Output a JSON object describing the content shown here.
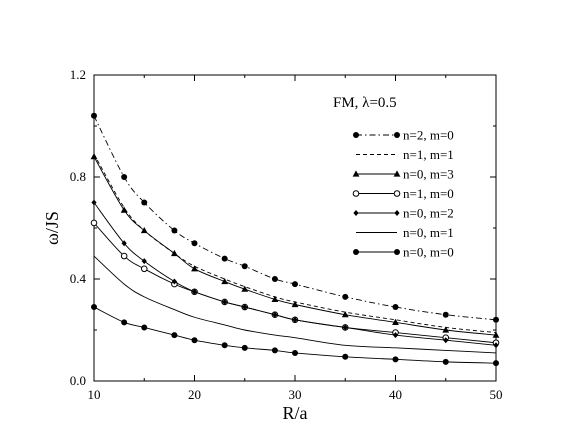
{
  "chart_data": {
    "type": "line",
    "title": "",
    "annotation": "FM, λ=0.5",
    "xlabel": "R/a",
    "ylabel": "ω/JS",
    "xlim": [
      10,
      50
    ],
    "ylim": [
      0,
      1.2
    ],
    "xticks": [
      10,
      20,
      30,
      40,
      50
    ],
    "yticks": [
      0.0,
      0.4,
      0.8,
      1.2
    ],
    "xtick_labels": [
      "10",
      "20",
      "30",
      "40",
      "50"
    ],
    "ytick_labels": [
      "0.0",
      "0.4",
      "0.8",
      "1.2"
    ],
    "grid": false,
    "legend_position": "right",
    "series": [
      {
        "name": "n=2, m=0",
        "line": "dashdot",
        "marker": "filled-circle",
        "x": [
          10,
          13,
          15,
          18,
          20,
          23,
          25,
          28,
          30,
          35,
          40,
          45,
          50
        ],
        "y": [
          1.04,
          0.8,
          0.7,
          0.59,
          0.54,
          0.48,
          0.45,
          0.4,
          0.38,
          0.33,
          0.29,
          0.26,
          0.24
        ]
      },
      {
        "name": "n=1, m=1",
        "line": "dashed",
        "marker": "none",
        "x": [
          10,
          13,
          15,
          18,
          20,
          23,
          25,
          28,
          30,
          35,
          40,
          45,
          50
        ],
        "y": [
          0.89,
          0.68,
          0.59,
          0.5,
          0.45,
          0.4,
          0.37,
          0.33,
          0.31,
          0.27,
          0.24,
          0.21,
          0.19
        ]
      },
      {
        "name": "n=0, m=3",
        "line": "solid",
        "marker": "filled-triangle",
        "x": [
          10,
          13,
          15,
          18,
          20,
          23,
          25,
          28,
          30,
          35,
          40,
          45,
          50
        ],
        "y": [
          0.88,
          0.67,
          0.59,
          0.5,
          0.44,
          0.39,
          0.36,
          0.32,
          0.3,
          0.26,
          0.23,
          0.2,
          0.18
        ]
      },
      {
        "name": "n=1, m=0",
        "line": "solid",
        "marker": "open-circle",
        "x": [
          10,
          13,
          15,
          18,
          20,
          23,
          25,
          28,
          30,
          35,
          40,
          45,
          50
        ],
        "y": [
          0.62,
          0.49,
          0.44,
          0.38,
          0.35,
          0.31,
          0.29,
          0.26,
          0.24,
          0.21,
          0.19,
          0.17,
          0.15
        ]
      },
      {
        "name": "n=0, m=2",
        "line": "solid",
        "marker": "filled-diamond",
        "x": [
          10,
          13,
          15,
          18,
          20,
          23,
          25,
          28,
          30,
          35,
          40,
          45,
          50
        ],
        "y": [
          0.7,
          0.54,
          0.47,
          0.39,
          0.35,
          0.31,
          0.29,
          0.26,
          0.24,
          0.21,
          0.18,
          0.16,
          0.14
        ]
      },
      {
        "name": "n=0, m=1",
        "line": "solid",
        "marker": "none",
        "x": [
          10,
          13,
          15,
          18,
          20,
          23,
          25,
          28,
          30,
          35,
          40,
          45,
          50
        ],
        "y": [
          0.49,
          0.38,
          0.33,
          0.28,
          0.25,
          0.22,
          0.2,
          0.18,
          0.17,
          0.14,
          0.13,
          0.12,
          0.11
        ]
      },
      {
        "name": "n=0, m=0",
        "line": "solid",
        "marker": "filled-circle",
        "x": [
          10,
          13,
          15,
          18,
          20,
          23,
          25,
          28,
          30,
          35,
          40,
          45,
          50
        ],
        "y": [
          0.29,
          0.23,
          0.21,
          0.18,
          0.16,
          0.14,
          0.13,
          0.12,
          0.11,
          0.095,
          0.085,
          0.075,
          0.07
        ]
      }
    ]
  }
}
